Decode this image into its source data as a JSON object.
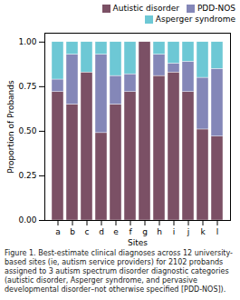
{
  "chart_data": {
    "type": "bar",
    "stacked": true,
    "xlabel": "Sites",
    "ylabel": "Proportion of Probands",
    "caption": "Figure 1. Best-estimate clinical diagnoses across 12 university-based sites (ie, autism service providers) for 2102 probands assigned to 3 autism spectrum disorder diagnostic categories (autistic disorder, Asperger syndrome, and pervasive developmental disorder–not otherwise specified [PDD-NOS]).",
    "categories": [
      "a",
      "b",
      "c",
      "d",
      "e",
      "f",
      "g",
      "h",
      "i",
      "j",
      "k",
      "l"
    ],
    "series": [
      {
        "name": "Autistic disorder",
        "color": "#7B5065",
        "values": [
          0.72,
          0.65,
          0.83,
          0.49,
          0.65,
          0.72,
          1.0,
          0.81,
          0.83,
          0.72,
          0.51,
          0.47
        ]
      },
      {
        "name": "PDD-NOS",
        "color": "#8487B8",
        "values": [
          0.07,
          0.28,
          0.0,
          0.44,
          0.16,
          0.1,
          0.0,
          0.12,
          0.05,
          0.17,
          0.29,
          0.38
        ]
      },
      {
        "name": "Asperger syndrome",
        "color": "#6DC8D5",
        "values": [
          0.21,
          0.07,
          0.17,
          0.07,
          0.19,
          0.18,
          0.0,
          0.07,
          0.12,
          0.11,
          0.2,
          0.15
        ]
      }
    ],
    "ylim": [
      0,
      1.05
    ],
    "yticks": [
      {
        "value": 0,
        "label": "0.00"
      },
      {
        "value": 0.25,
        "label": "0.25"
      },
      {
        "value": 0.5,
        "label": "0.50"
      },
      {
        "value": 0.75,
        "label": "0.75"
      },
      {
        "value": 1,
        "label": "1.00"
      }
    ],
    "legend": "upper right",
    "grid": false
  }
}
